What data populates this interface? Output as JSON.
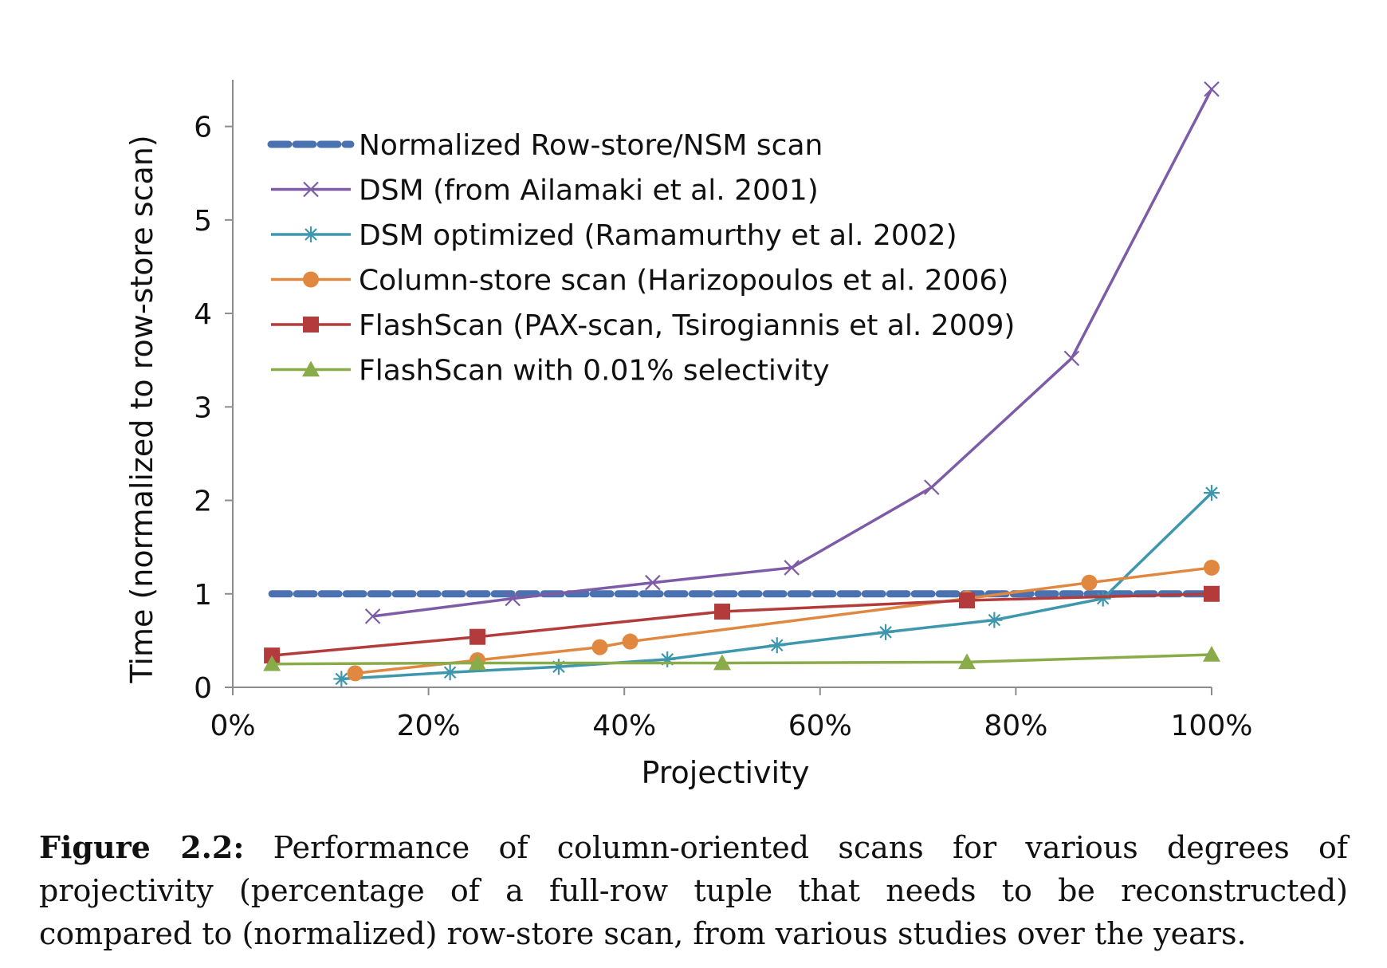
{
  "chart_data": {
    "type": "line",
    "xlabel": "Projectivity",
    "ylabel": "Time (normalized to row-store scan)",
    "xlim": [
      0,
      100
    ],
    "ylim": [
      0,
      6.5
    ],
    "x_ticks": [
      0,
      20,
      40,
      60,
      80,
      100
    ],
    "x_tick_labels": [
      "0%",
      "20%",
      "40%",
      "60%",
      "80%",
      "100%"
    ],
    "y_ticks": [
      0,
      1,
      2,
      3,
      4,
      5,
      6
    ],
    "y_tick_labels": [
      "0",
      "1",
      "2",
      "3",
      "4",
      "5",
      "6"
    ],
    "grid": false,
    "legend_position": "top-left",
    "series": [
      {
        "name": "Normalized Row-store/NSM scan",
        "color": "#4a72b0",
        "line": "dashed",
        "marker": "none",
        "x": [
          4,
          100
        ],
        "y": [
          1,
          1
        ]
      },
      {
        "name": "DSM (from Ailamaki et al. 2001)",
        "color": "#7d5ba6",
        "line": "solid",
        "marker": "x",
        "x": [
          14.3,
          28.6,
          42.9,
          57.1,
          71.4,
          85.7,
          100
        ],
        "y": [
          0.76,
          0.95,
          1.12,
          1.28,
          2.14,
          3.52,
          6.4
        ]
      },
      {
        "name": "DSM optimized (Ramamurthy et al. 2002)",
        "color": "#3e97ad",
        "line": "solid",
        "marker": "asterisk",
        "x": [
          11.1,
          22.2,
          33.3,
          44.4,
          55.6,
          66.7,
          77.8,
          88.9,
          100
        ],
        "y": [
          0.09,
          0.16,
          0.22,
          0.3,
          0.45,
          0.59,
          0.72,
          0.95,
          2.08
        ]
      },
      {
        "name": "Column-store scan (Harizopoulos et al. 2006)",
        "color": "#e0883f",
        "line": "solid",
        "marker": "circle",
        "x": [
          12.5,
          25,
          37.5,
          40.6,
          75,
          87.5,
          100
        ],
        "y": [
          0.15,
          0.29,
          0.43,
          0.49,
          0.95,
          1.12,
          1.28
        ]
      },
      {
        "name": "FlashScan (PAX-scan, Tsirogiannis et al. 2009)",
        "color": "#b33b3b",
        "line": "solid",
        "marker": "square",
        "x": [
          4,
          25,
          50,
          75,
          100
        ],
        "y": [
          0.34,
          0.54,
          0.81,
          0.93,
          1.0
        ]
      },
      {
        "name": "FlashScan with 0.01% selectivity",
        "color": "#8aab4a",
        "line": "solid",
        "marker": "triangle",
        "x": [
          4,
          25,
          50,
          75,
          100
        ],
        "y": [
          0.25,
          0.26,
          0.26,
          0.27,
          0.35
        ]
      }
    ]
  },
  "caption": {
    "label": "Figure 2.2:",
    "text": "Performance of column-oriented scans for various degrees of projectivity (percentage of a full-row tuple that needs to be reconstructed) compared to (normalized) row-store scan, from various studies over the years."
  }
}
